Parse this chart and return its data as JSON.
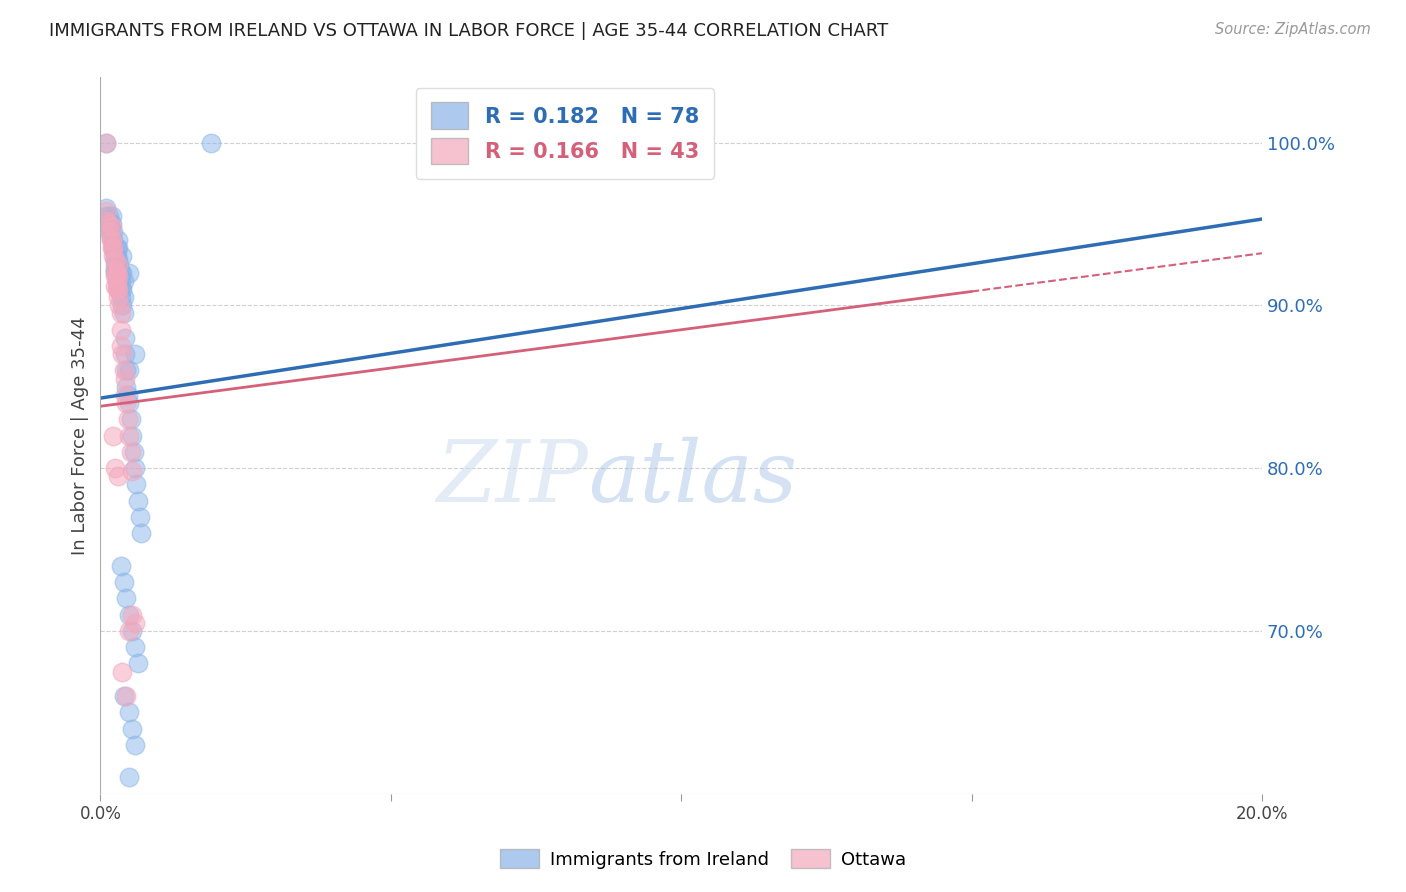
{
  "title": "IMMIGRANTS FROM IRELAND VS OTTAWA IN LABOR FORCE | AGE 35-44 CORRELATION CHART",
  "source": "Source: ZipAtlas.com",
  "ylabel": "In Labor Force | Age 35-44",
  "legend_blue_label": "Immigrants from Ireland",
  "legend_pink_label": "Ottawa",
  "R_blue": 0.182,
  "N_blue": 78,
  "R_pink": 0.166,
  "N_pink": 43,
  "blue_color": "#8ab4e8",
  "pink_color": "#f4a8bc",
  "blue_line_color": "#2e6db4",
  "pink_line_color": "#d4607a",
  "watermark_zip": "ZIP",
  "watermark_atlas": "atlas",
  "blue_scatter": [
    [
      0.001,
      1.0
    ],
    [
      0.001,
      0.96
    ],
    [
      0.001,
      0.955
    ],
    [
      0.001,
      0.95
    ],
    [
      0.001,
      0.948
    ],
    [
      0.0015,
      0.955
    ],
    [
      0.0015,
      0.95
    ],
    [
      0.0015,
      0.952
    ],
    [
      0.0018,
      0.948
    ],
    [
      0.0018,
      0.942
    ],
    [
      0.002,
      0.955
    ],
    [
      0.002,
      0.95
    ],
    [
      0.0022,
      0.945
    ],
    [
      0.0022,
      0.94
    ],
    [
      0.0022,
      0.938
    ],
    [
      0.0022,
      0.935
    ],
    [
      0.0025,
      0.932
    ],
    [
      0.0025,
      0.93
    ],
    [
      0.0025,
      0.928
    ],
    [
      0.0025,
      0.925
    ],
    [
      0.0025,
      0.922
    ],
    [
      0.0025,
      0.92
    ],
    [
      0.0028,
      0.935
    ],
    [
      0.0028,
      0.93
    ],
    [
      0.0028,
      0.925
    ],
    [
      0.0028,
      0.92
    ],
    [
      0.0028,
      0.915
    ],
    [
      0.003,
      0.94
    ],
    [
      0.003,
      0.935
    ],
    [
      0.003,
      0.928
    ],
    [
      0.003,
      0.922
    ],
    [
      0.003,
      0.918
    ],
    [
      0.003,
      0.912
    ],
    [
      0.0032,
      0.925
    ],
    [
      0.0032,
      0.92
    ],
    [
      0.0032,
      0.915
    ],
    [
      0.0032,
      0.91
    ],
    [
      0.0035,
      0.92
    ],
    [
      0.0035,
      0.915
    ],
    [
      0.0035,
      0.91
    ],
    [
      0.0035,
      0.905
    ],
    [
      0.0038,
      0.93
    ],
    [
      0.0038,
      0.92
    ],
    [
      0.0038,
      0.91
    ],
    [
      0.0038,
      0.9
    ],
    [
      0.004,
      0.915
    ],
    [
      0.004,
      0.905
    ],
    [
      0.004,
      0.895
    ],
    [
      0.0042,
      0.88
    ],
    [
      0.0042,
      0.87
    ],
    [
      0.0045,
      0.86
    ],
    [
      0.0045,
      0.85
    ],
    [
      0.0048,
      0.845
    ],
    [
      0.005,
      0.92
    ],
    [
      0.005,
      0.86
    ],
    [
      0.005,
      0.84
    ],
    [
      0.0052,
      0.83
    ],
    [
      0.0055,
      0.82
    ],
    [
      0.0058,
      0.81
    ],
    [
      0.006,
      0.87
    ],
    [
      0.006,
      0.8
    ],
    [
      0.0062,
      0.79
    ],
    [
      0.0065,
      0.78
    ],
    [
      0.0068,
      0.77
    ],
    [
      0.007,
      0.76
    ],
    [
      0.0035,
      0.74
    ],
    [
      0.004,
      0.73
    ],
    [
      0.0045,
      0.72
    ],
    [
      0.005,
      0.71
    ],
    [
      0.0055,
      0.7
    ],
    [
      0.006,
      0.69
    ],
    [
      0.0065,
      0.68
    ],
    [
      0.004,
      0.66
    ],
    [
      0.005,
      0.65
    ],
    [
      0.0055,
      0.64
    ],
    [
      0.006,
      0.63
    ],
    [
      0.005,
      0.61
    ],
    [
      0.019,
      1.0
    ]
  ],
  "pink_scatter": [
    [
      0.001,
      1.0
    ],
    [
      0.001,
      0.958
    ],
    [
      0.001,
      0.952
    ],
    [
      0.0015,
      0.95
    ],
    [
      0.0015,
      0.945
    ],
    [
      0.0018,
      0.94
    ],
    [
      0.002,
      0.948
    ],
    [
      0.002,
      0.94
    ],
    [
      0.002,
      0.935
    ],
    [
      0.0022,
      0.935
    ],
    [
      0.0022,
      0.93
    ],
    [
      0.0025,
      0.928
    ],
    [
      0.0025,
      0.922
    ],
    [
      0.0025,
      0.918
    ],
    [
      0.0025,
      0.912
    ],
    [
      0.0028,
      0.92
    ],
    [
      0.0028,
      0.915
    ],
    [
      0.0028,
      0.91
    ],
    [
      0.003,
      0.925
    ],
    [
      0.003,
      0.918
    ],
    [
      0.003,
      0.91
    ],
    [
      0.003,
      0.905
    ],
    [
      0.0032,
      0.9
    ],
    [
      0.0035,
      0.895
    ],
    [
      0.0035,
      0.885
    ],
    [
      0.0035,
      0.875
    ],
    [
      0.0038,
      0.87
    ],
    [
      0.004,
      0.86
    ],
    [
      0.0042,
      0.855
    ],
    [
      0.0042,
      0.845
    ],
    [
      0.0045,
      0.84
    ],
    [
      0.0048,
      0.83
    ],
    [
      0.005,
      0.82
    ],
    [
      0.0052,
      0.81
    ],
    [
      0.0022,
      0.82
    ],
    [
      0.0025,
      0.8
    ],
    [
      0.003,
      0.795
    ],
    [
      0.0055,
      0.798
    ],
    [
      0.0055,
      0.71
    ],
    [
      0.006,
      0.705
    ],
    [
      0.0038,
      0.675
    ],
    [
      0.0045,
      0.66
    ],
    [
      0.005,
      0.7
    ]
  ],
  "xlim": [
    0.0,
    0.2
  ],
  "ylim": [
    0.6,
    1.04
  ],
  "yticks_right": [
    1.0,
    0.9,
    0.8,
    0.7
  ],
  "xticks": [
    0.0,
    0.05,
    0.1,
    0.15,
    0.2
  ],
  "grid_color": "#d0d0d0",
  "bg_color": "#ffffff",
  "blue_intercept": 0.843,
  "blue_slope": 0.55,
  "pink_intercept": 0.838,
  "pink_slope": 0.47
}
